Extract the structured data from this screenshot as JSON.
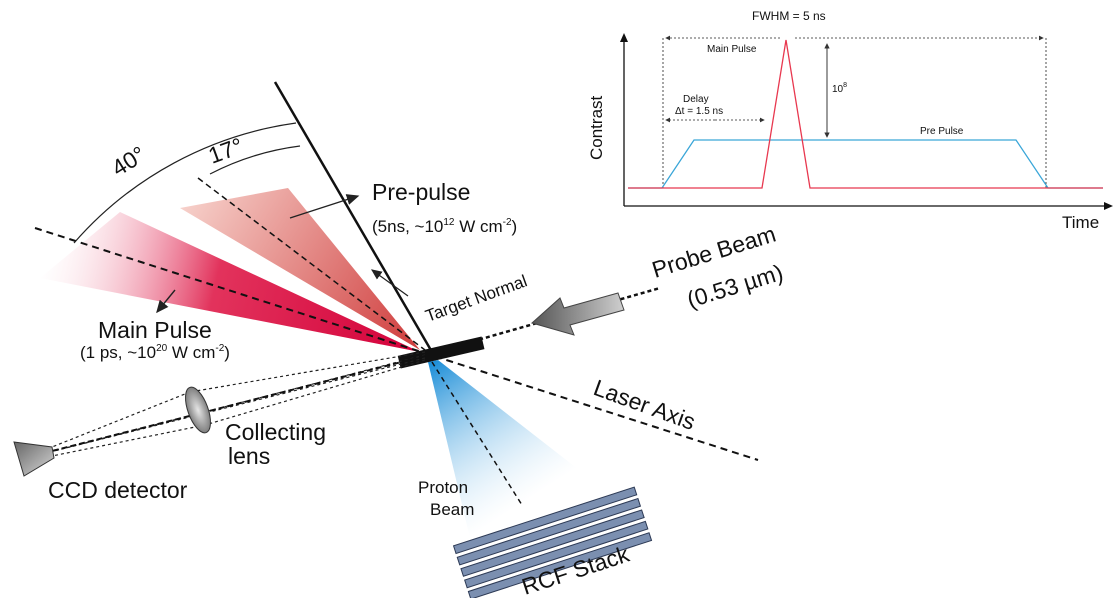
{
  "diagram": {
    "angles": {
      "outer": "40°",
      "inner": "17°"
    },
    "prepulse": {
      "title": "Pre-pulse",
      "params_prefix": "(5ns, ~10",
      "params_exp": "12",
      "params_suffix": " W cm",
      "params_unit_exp": "-2",
      "params_close": ")"
    },
    "main_pulse": {
      "title": "Main Pulse",
      "params_prefix": "(1 ps, ~10",
      "params_exp": "20",
      "params_suffix": " W cm",
      "params_unit_exp": "-2",
      "params_close": ")"
    },
    "target_normal": "Target Normal",
    "probe_beam": {
      "line1": "Probe Beam",
      "line2": "(0.53 µm)"
    },
    "laser_axis": "Laser Axis",
    "collecting_lens": {
      "line1": "Collecting",
      "line2": "lens"
    },
    "ccd": "CCD detector",
    "proton_beam": {
      "line1": "Proton",
      "line2": "Beam"
    },
    "rcf": "RCF Stack"
  },
  "inset": {
    "fwhm": "FWHM  = 5 ns",
    "main_pulse_label": "Main Pulse",
    "contrast_value": "10",
    "contrast_exp": "8",
    "delay_line1": "Delay",
    "delay_line2": "Δt = 1.5 ns",
    "pre_pulse_label": "Pre Pulse",
    "ylabel": "Contrast",
    "xlabel": "Time",
    "colors": {
      "main": "#e8384f",
      "pre": "#3aa6d8"
    }
  }
}
